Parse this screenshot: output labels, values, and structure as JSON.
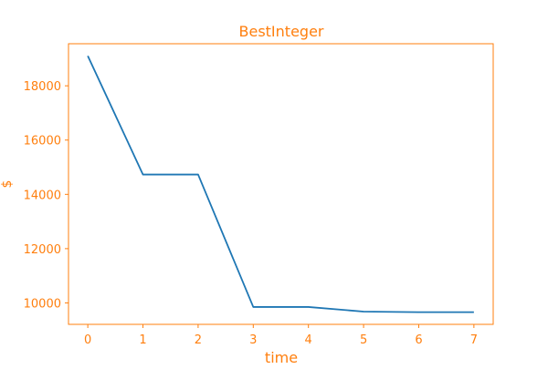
{
  "chart_data": {
    "type": "line",
    "title": "BestInteger",
    "xlabel": "time",
    "ylabel": "$",
    "x": [
      0,
      1,
      2,
      3,
      4,
      5,
      6,
      7
    ],
    "series": [
      {
        "values": [
          19100,
          14730,
          14730,
          9850,
          9850,
          9680,
          9660,
          9660
        ]
      }
    ],
    "xlim": [
      -0.35,
      7.35
    ],
    "ylim": [
      9210,
      19550
    ],
    "xticks": [
      0,
      1,
      2,
      3,
      4,
      5,
      6,
      7
    ],
    "yticks": [
      10000,
      12000,
      14000,
      16000,
      18000
    ],
    "grid": false,
    "legend": "none",
    "colors": {
      "line": "#1f77b4",
      "axes": "#ff7f0e",
      "text": "#ff7f0e",
      "background": "#ffffff"
    }
  }
}
